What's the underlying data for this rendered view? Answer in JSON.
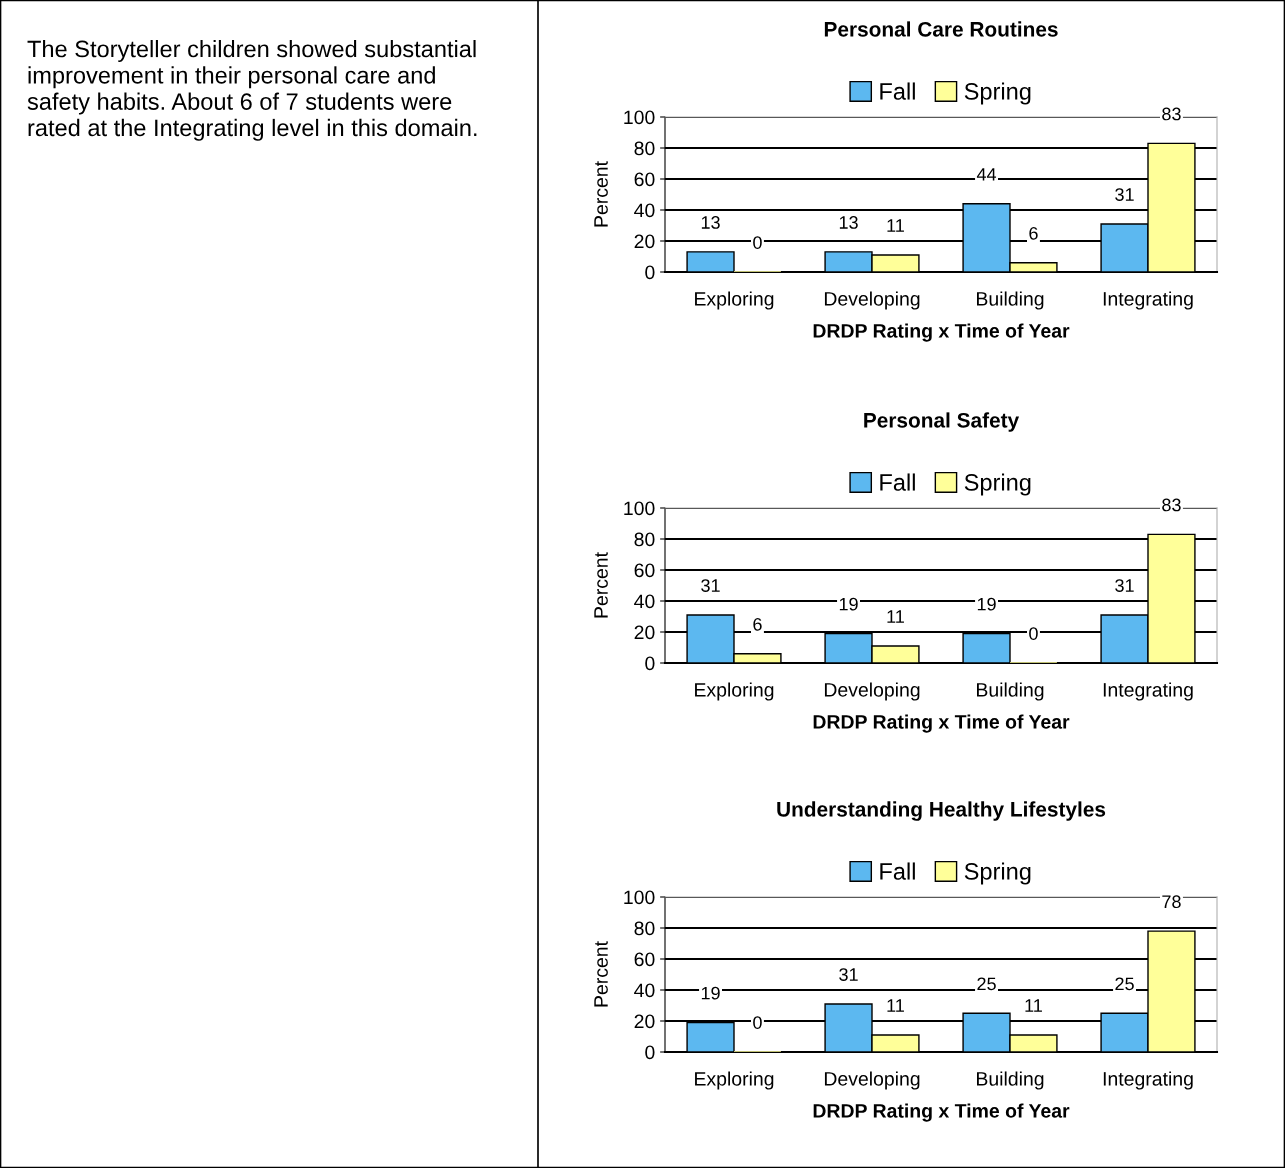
{
  "chart_data": [
    {
      "type": "other",
      "annotations": [
        "The Storyteller children showed substantial improvement in their personal care and safety habits. About 6 of 7 students were rated at the Integrating level in this domain."
      ]
    },
    {
      "type": "bar",
      "title": "Personal Care Routines",
      "xlabel": "DRDP Rating x Time of Year",
      "ylabel": "Percent",
      "categories": [
        "Exploring",
        "Developing",
        "Building",
        "Integrating"
      ],
      "series": [
        {
          "name": "Fall",
          "color": "#5cb8f0",
          "values": [
            13,
            13,
            44,
            31
          ]
        },
        {
          "name": "Spring",
          "color": "#ffff99",
          "values": [
            0,
            11,
            6,
            83
          ]
        }
      ],
      "ylim": [
        0,
        100
      ],
      "yticks": [
        0,
        20,
        40,
        60,
        80,
        100
      ],
      "grid": "y",
      "legend": "top",
      "data_labels": true
    },
    {
      "type": "bar",
      "title": "Personal Safety",
      "xlabel": "DRDP Rating x Time of Year",
      "ylabel": "Percent",
      "categories": [
        "Exploring",
        "Developing",
        "Building",
        "Integrating"
      ],
      "series": [
        {
          "name": "Fall",
          "color": "#5cb8f0",
          "values": [
            31,
            19,
            19,
            31
          ]
        },
        {
          "name": "Spring",
          "color": "#ffff99",
          "values": [
            6,
            11,
            0,
            83
          ]
        }
      ],
      "ylim": [
        0,
        100
      ],
      "yticks": [
        0,
        20,
        40,
        60,
        80,
        100
      ],
      "grid": "y",
      "legend": "top",
      "data_labels": true
    },
    {
      "type": "bar",
      "title": "Understanding Healthy Lifestyles",
      "xlabel": "DRDP Rating x Time of Year",
      "ylabel": "Percent",
      "categories": [
        "Exploring",
        "Developing",
        "Building",
        "Integrating"
      ],
      "series": [
        {
          "name": "Fall",
          "color": "#5cb8f0",
          "values": [
            19,
            31,
            25,
            25
          ]
        },
        {
          "name": "Spring",
          "color": "#ffff99",
          "values": [
            0,
            11,
            11,
            78
          ]
        }
      ],
      "ylim": [
        0,
        100
      ],
      "yticks": [
        0,
        20,
        40,
        60,
        80,
        100
      ],
      "grid": "y",
      "legend": "top",
      "data_labels": true
    }
  ]
}
